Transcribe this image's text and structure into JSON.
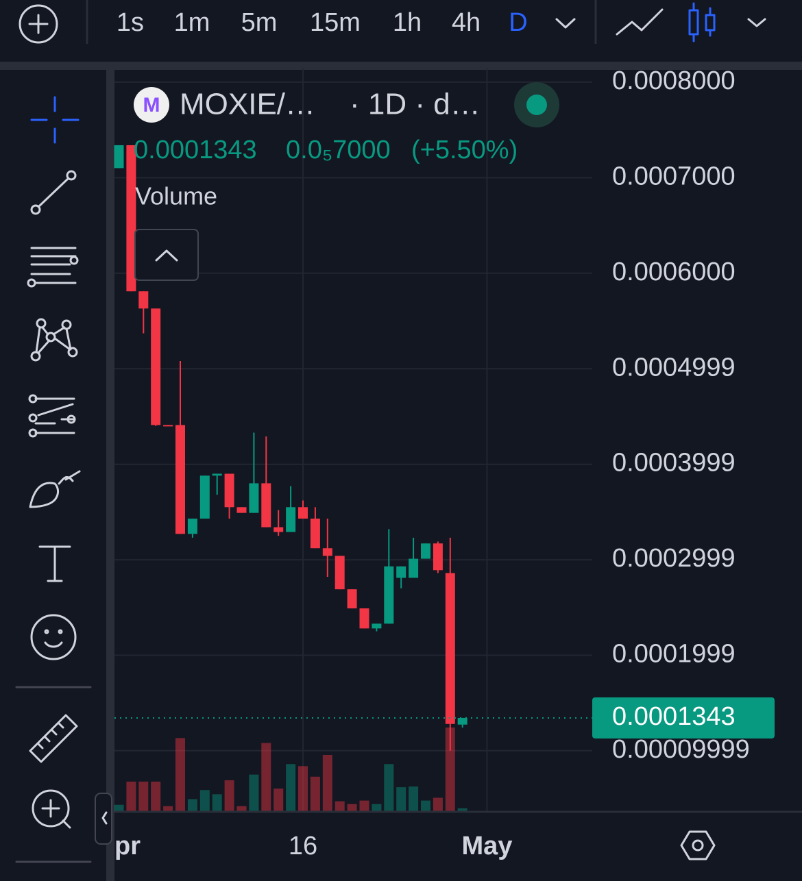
{
  "toolbar": {
    "intervals": [
      "1s",
      "1m",
      "5m",
      "15m",
      "1h",
      "4h",
      "D"
    ],
    "active": "D"
  },
  "legend": {
    "logo": "M",
    "symbol": "MOXIE/…",
    "interval": "· 1D · d…",
    "price": "0.0001343",
    "change": "0.0₅7000",
    "change_pct": "(+5.50%)",
    "volume": "Volume"
  },
  "chart_data": {
    "type": "candlestick",
    "categories": [
      "pr",
      null,
      null,
      null,
      null,
      null,
      null,
      null,
      null,
      null,
      null,
      null,
      null,
      null,
      null,
      "16",
      null,
      null,
      null,
      null,
      null,
      null,
      null,
      null,
      null,
      null,
      null,
      null,
      null,
      null,
      "May",
      null,
      null,
      null,
      null,
      null,
      null,
      null,
      null
    ],
    "open": [
      0.00071,
      0.000734,
      0.000581,
      0.000563,
      0.000441,
      0.000441,
      0.000327,
      0.000343,
      0.000388,
      0.00039,
      0.000355,
      0.000349,
      0.00038,
      0.000334,
      0.000329,
      0.000355,
      0.000343,
      0.000312,
      0.000304,
      0.000269,
      0.000249,
      0.000228,
      0.000233,
      0.000281,
      0.000281,
      0.000301,
      0.000317,
      0.000286,
      0.0001273,
      null,
      null,
      null,
      null,
      null,
      null,
      null,
      null,
      null,
      null
    ],
    "high": [
      0.000734,
      0.000734,
      0.000581,
      0.000563,
      0.000441,
      0.000508,
      0.000343,
      0.000388,
      0.00039,
      0.00039,
      0.000355,
      0.000433,
      0.000429,
      0.000352,
      0.000377,
      0.000362,
      0.000355,
      0.000343,
      0.000304,
      0.000269,
      0.000249,
      0.000233,
      0.000332,
      0.000293,
      0.000323,
      0.000317,
      0.000319,
      0.000323,
      0.0001343,
      null,
      null,
      null,
      null,
      null,
      null,
      null,
      null,
      null,
      null
    ],
    "low": [
      0.00071,
      0.000581,
      0.000537,
      0.00044,
      0.00044,
      0.000327,
      0.000323,
      0.000343,
      0.000368,
      0.000343,
      0.000349,
      0.000349,
      0.000334,
      0.000325,
      0.000329,
      0.000343,
      0.000312,
      0.000282,
      0.000269,
      0.000249,
      0.000228,
      0.000225,
      0.000233,
      0.00027,
      0.000281,
      0.000301,
      0.000286,
      0.0001,
      0.0001242,
      null,
      null,
      null,
      null,
      null,
      null,
      null,
      null,
      null,
      null
    ],
    "close": [
      0.000734,
      0.000581,
      0.000563,
      0.000441,
      0.0004405,
      0.000327,
      0.000343,
      0.000388,
      0.00039,
      0.000355,
      0.000349,
      0.00038,
      0.000334,
      0.000329,
      0.000355,
      0.000343,
      0.000312,
      0.000304,
      0.000269,
      0.000249,
      0.000228,
      0.000233,
      0.000293,
      0.000293,
      0.000301,
      0.000317,
      0.000289,
      0.000128,
      0.0001343,
      null,
      null,
      null,
      null,
      null,
      null,
      null,
      null,
      null,
      null
    ],
    "volume": [
      10,
      43,
      43,
      43,
      8,
      105,
      18,
      31,
      25,
      45,
      8,
      53,
      98,
      33,
      68,
      65,
      50,
      81,
      15,
      11,
      16,
      11,
      68,
      35,
      36,
      16,
      20,
      120,
      5,
      null,
      null,
      null,
      null,
      null,
      null,
      null,
      null,
      null,
      null
    ],
    "up_color": "#089981",
    "down_color": "#f23645",
    "ylim": [
      3.6e-05,
      0.0008143
    ],
    "yticks": [
      {
        "value": 0.0008,
        "label": "0.0008000"
      },
      {
        "value": 0.0007,
        "label": "0.0007000"
      },
      {
        "value": 0.0006,
        "label": "0.0006000"
      },
      {
        "value": 0.0004999,
        "label": "0.0004999"
      },
      {
        "value": 0.0003999,
        "label": "0.0003999"
      },
      {
        "value": 0.0002999,
        "label": "0.0002999"
      },
      {
        "value": 0.0001999,
        "label": "0.0001999"
      },
      {
        "value": 9.999e-05,
        "label": "0.00009999"
      }
    ],
    "grid": true
  }
}
